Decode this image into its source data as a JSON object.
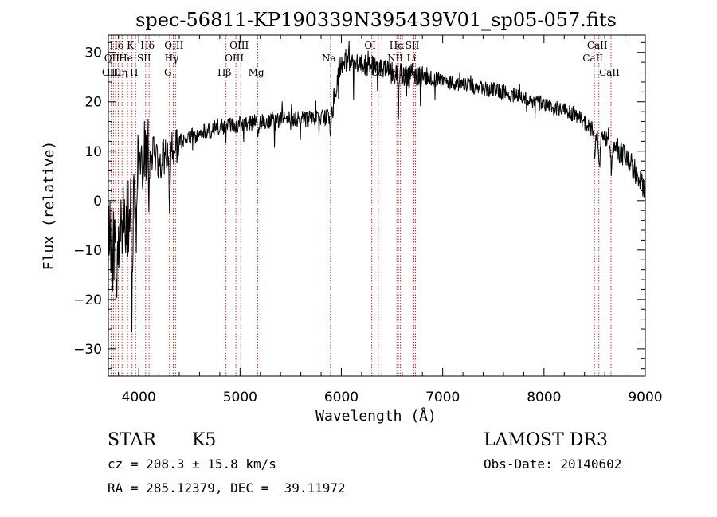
{
  "chart_data": {
    "type": "line",
    "title": "spec-56811-KP190339N395439V01_sp05-057.fits",
    "xlabel": "Wavelength (Å)",
    "ylabel": "Flux (relative)",
    "xlim": [
      3700,
      9000
    ],
    "ylim": [
      -35.5,
      33.5
    ],
    "x_ticks": [
      4000,
      5000,
      6000,
      7000,
      8000,
      9000
    ],
    "x_tick_labels": [
      "4000",
      "5000",
      "6000",
      "7000",
      "8000",
      "9000"
    ],
    "y_ticks": [
      -30,
      -20,
      -10,
      0,
      10,
      20,
      30
    ],
    "y_tick_labels": [
      "−30",
      "−20",
      "−10",
      "0",
      "10",
      "20",
      "30"
    ],
    "grid": false,
    "line_color": "#000000",
    "marker_color": "#b03030",
    "continuum_anchors": [
      [
        3700,
        -5
      ],
      [
        3760,
        -12
      ],
      [
        3800,
        -10
      ],
      [
        3850,
        -6
      ],
      [
        3900,
        -3
      ],
      [
        3950,
        2
      ],
      [
        4000,
        9
      ],
      [
        4100,
        10
      ],
      [
        4200,
        8
      ],
      [
        4300,
        10
      ],
      [
        4400,
        12
      ],
      [
        4600,
        13.5
      ],
      [
        4800,
        15
      ],
      [
        5000,
        15.5
      ],
      [
        5200,
        16
      ],
      [
        5500,
        16.5
      ],
      [
        5700,
        16.5
      ],
      [
        5900,
        17
      ],
      [
        5940,
        22
      ],
      [
        5980,
        27
      ],
      [
        6050,
        28.5
      ],
      [
        6200,
        27.5
      ],
      [
        6500,
        26
      ],
      [
        6800,
        25
      ],
      [
        7200,
        23.5
      ],
      [
        7600,
        22
      ],
      [
        8000,
        19.5
      ],
      [
        8300,
        17.5
      ],
      [
        8500,
        14
      ],
      [
        8700,
        11
      ],
      [
        8850,
        8
      ],
      [
        9000,
        2
      ]
    ],
    "absorption_features": [
      {
        "x": 3935,
        "depth": 15,
        "width": 10
      },
      {
        "x": 3970,
        "depth": 12,
        "width": 10
      },
      {
        "x": 4102,
        "depth": 6,
        "width": 8
      },
      {
        "x": 4305,
        "depth": 14,
        "width": 6
      },
      {
        "x": 4861,
        "depth": 2,
        "width": 10
      },
      {
        "x": 5175,
        "depth": 3,
        "width": 14
      },
      {
        "x": 5893,
        "depth": 4,
        "width": 8
      },
      {
        "x": 6563,
        "depth": 9,
        "width": 6
      },
      {
        "x": 8500,
        "depth": 5,
        "width": 10
      },
      {
        "x": 8545,
        "depth": 7,
        "width": 10
      },
      {
        "x": 8665,
        "depth": 5,
        "width": 10
      }
    ],
    "noise_bands": [
      {
        "from": 3700,
        "to": 3850,
        "amplitude": 9
      },
      {
        "from": 3850,
        "to": 4100,
        "amplitude": 8
      },
      {
        "from": 4100,
        "to": 4400,
        "amplitude": 4
      },
      {
        "from": 4400,
        "to": 5900,
        "amplitude": 1.7
      },
      {
        "from": 5900,
        "to": 6800,
        "amplitude": 2.5
      },
      {
        "from": 6800,
        "to": 8700,
        "amplitude": 1.6
      },
      {
        "from": 8700,
        "to": 9000,
        "amplitude": 2.5
      }
    ],
    "line_markers": [
      {
        "wave": 3728,
        "label": "OII",
        "row": 3
      },
      {
        "wave": 3750,
        "label": "OII",
        "row": 2
      },
      {
        "wave": 3771,
        "label": "Hθ",
        "row": 3
      },
      {
        "wave": 3798,
        "label": "Hδ",
        "row": 1
      },
      {
        "wave": 3835,
        "label": "Hη",
        "row": 3
      },
      {
        "wave": 3889,
        "label": "He",
        "row": 2
      },
      {
        "wave": 3934,
        "label": "K",
        "row": 1
      },
      {
        "wave": 3969,
        "label": "H",
        "row": 3
      },
      {
        "wave": 4068,
        "label": "SII",
        "row": 2
      },
      {
        "wave": 4102,
        "label": "Hδ",
        "row": 1
      },
      {
        "wave": 4304,
        "label": "G",
        "row": 3
      },
      {
        "wave": 4341,
        "label": "Hγ",
        "row": 2
      },
      {
        "wave": 4363,
        "label": "OIII",
        "row": 1
      },
      {
        "wave": 4861,
        "label": "Hβ",
        "row": 3
      },
      {
        "wave": 4959,
        "label": "OIII",
        "row": 2
      },
      {
        "wave": 5007,
        "label": "OIII",
        "row": 1
      },
      {
        "wave": 5175,
        "label": "Mg",
        "row": 3
      },
      {
        "wave": 5893,
        "label": "Na",
        "row": 2
      },
      {
        "wave": 6300,
        "label": "OI",
        "row": 1
      },
      {
        "wave": 6364,
        "label": "OI",
        "row": 3
      },
      {
        "wave": 6548,
        "label": "NII",
        "row": 2
      },
      {
        "wave": 6563,
        "label": "Hα",
        "row": 1
      },
      {
        "wave": 6583,
        "label": "NII",
        "row": 3
      },
      {
        "wave": 6707,
        "label": "Li",
        "row": 2
      },
      {
        "wave": 6716,
        "label": "SII",
        "row": 1
      },
      {
        "wave": 6731,
        "label": "SII",
        "row": 3
      },
      {
        "wave": 8498,
        "label": "CaII",
        "row": 2
      },
      {
        "wave": 8542,
        "label": "CaII",
        "row": 1
      },
      {
        "wave": 8662,
        "label": "CaII",
        "row": 3
      }
    ]
  },
  "info": {
    "object_class": "STAR",
    "subclass": "K5",
    "survey": "LAMOST DR3",
    "redshift": "cz = 208.3 ± 15.8 km/s",
    "obs_date": "Obs-Date: 20140602",
    "coords": "RA = 285.12379, DEC =  39.11972"
  }
}
